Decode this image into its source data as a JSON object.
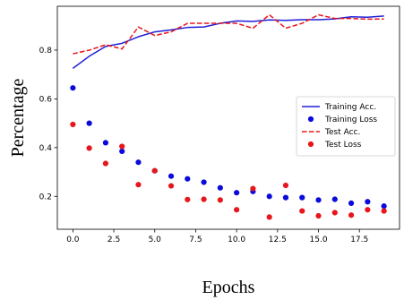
{
  "chart_data": {
    "type": "line",
    "xlabel": "Epochs",
    "ylabel": "Percentage",
    "xlim": [
      -0.95,
      19.95
    ],
    "ylim": [
      0.065,
      0.98
    ],
    "xticks": [
      0.0,
      2.5,
      5.0,
      7.5,
      10.0,
      12.5,
      15.0,
      17.5
    ],
    "xtick_labels": [
      "0.0",
      "2.5",
      "5.0",
      "7.5",
      "10.0",
      "12.5",
      "15.0",
      "17.5"
    ],
    "yticks": [
      0.2,
      0.4,
      0.6,
      0.8
    ],
    "ytick_labels": [
      "0.2",
      "0.4",
      "0.6",
      "0.8"
    ],
    "legend_position": "center-right",
    "grid": false,
    "series": [
      {
        "name": "Training Acc.",
        "kind": "line",
        "style": "solid",
        "color": "#1f1fd6",
        "x": [
          0,
          1,
          2,
          3,
          4,
          5,
          6,
          7,
          8,
          9,
          10,
          11,
          12,
          13,
          14,
          15,
          16,
          17,
          18,
          19
        ],
        "values": [
          0.725,
          0.775,
          0.815,
          0.828,
          0.855,
          0.875,
          0.883,
          0.893,
          0.895,
          0.91,
          0.92,
          0.918,
          0.924,
          0.922,
          0.925,
          0.925,
          0.928,
          0.937,
          0.935,
          0.94
        ]
      },
      {
        "name": "Training Loss",
        "kind": "scatter",
        "color": "#0a0adc",
        "x": [
          0,
          1,
          2,
          3,
          4,
          5,
          6,
          7,
          8,
          9,
          10,
          11,
          12,
          13,
          14,
          15,
          16,
          17,
          18,
          19
        ],
        "values": [
          0.645,
          0.5,
          0.42,
          0.385,
          0.34,
          0.305,
          0.283,
          0.272,
          0.258,
          0.235,
          0.215,
          0.22,
          0.2,
          0.195,
          0.195,
          0.185,
          0.188,
          0.172,
          0.178,
          0.16
        ]
      },
      {
        "name": "Test Acc.",
        "kind": "line",
        "style": "dashed",
        "color": "#e8161c",
        "x": [
          0,
          1,
          2,
          3,
          4,
          5,
          6,
          7,
          8,
          9,
          10,
          11,
          12,
          13,
          14,
          15,
          16,
          17,
          18,
          19
        ],
        "values": [
          0.785,
          0.8,
          0.822,
          0.805,
          0.895,
          0.86,
          0.875,
          0.91,
          0.91,
          0.91,
          0.91,
          0.89,
          0.945,
          0.89,
          0.91,
          0.945,
          0.93,
          0.93,
          0.927,
          0.928
        ]
      },
      {
        "name": "Test Loss",
        "kind": "scatter",
        "color": "#e8161c",
        "x": [
          0,
          1,
          2,
          3,
          4,
          5,
          6,
          7,
          8,
          9,
          10,
          11,
          12,
          13,
          14,
          15,
          16,
          17,
          18,
          19
        ],
        "values": [
          0.495,
          0.398,
          0.335,
          0.405,
          0.248,
          0.305,
          0.243,
          0.187,
          0.188,
          0.185,
          0.145,
          0.232,
          0.115,
          0.245,
          0.14,
          0.12,
          0.133,
          0.123,
          0.145,
          0.14
        ]
      }
    ]
  }
}
